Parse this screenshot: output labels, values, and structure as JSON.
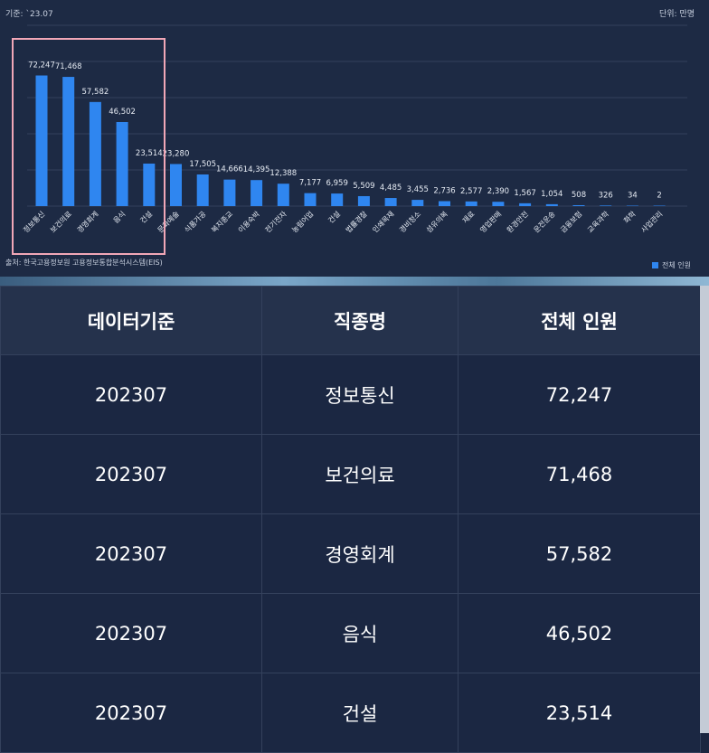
{
  "chart_data": {
    "type": "bar",
    "basis": "기준: `23.07",
    "unit": "단위: 만명",
    "source": "출처: 한국고용정보원 고용정보통합분석시스템(EIS)",
    "legend": "전체 인원",
    "bar_color": "#2f86f0",
    "categories": [
      "정보통신",
      "보건의료",
      "경영회계",
      "음식",
      "건설",
      "문화예술",
      "식품가공",
      "복지종교",
      "이용숙박",
      "전기전자",
      "농림어업",
      "건설",
      "법률경찰",
      "인쇄목재",
      "경비청소",
      "섬유의복",
      "재료",
      "영업판매",
      "환경안전",
      "운전운송",
      "금융보험",
      "교육과학",
      "화학",
      "사업관리"
    ],
    "labels": [
      "72,247",
      "71,468",
      "57,582",
      "46,502",
      "23,514",
      "23,280",
      "17,505",
      "14,666",
      "14,395",
      "12,388",
      "7,177",
      "6,959",
      "5,509",
      "4,485",
      "3,455",
      "2,736",
      "2,577",
      "2,390",
      "1,567",
      "1,054",
      "508",
      "326",
      "34",
      "2"
    ],
    "values": [
      72247,
      71468,
      57582,
      46502,
      23514,
      23280,
      17505,
      14666,
      14395,
      12388,
      7177,
      6959,
      5509,
      4485,
      3455,
      2736,
      2577,
      2390,
      1567,
      1054,
      508,
      326,
      34,
      2
    ],
    "ylim": [
      0,
      100000
    ]
  },
  "table": {
    "headers": [
      "데이터기준",
      "직종명",
      "전체 인원"
    ],
    "rows": [
      [
        "202307",
        "정보통신",
        "72,247"
      ],
      [
        "202307",
        "보건의료",
        "71,468"
      ],
      [
        "202307",
        "경영회계",
        "57,582"
      ],
      [
        "202307",
        "음식",
        "46,502"
      ],
      [
        "202307",
        "건설",
        "23,514"
      ]
    ]
  },
  "colors": {
    "highlight": "#f1a7b7",
    "accent": "#2f86f0"
  }
}
